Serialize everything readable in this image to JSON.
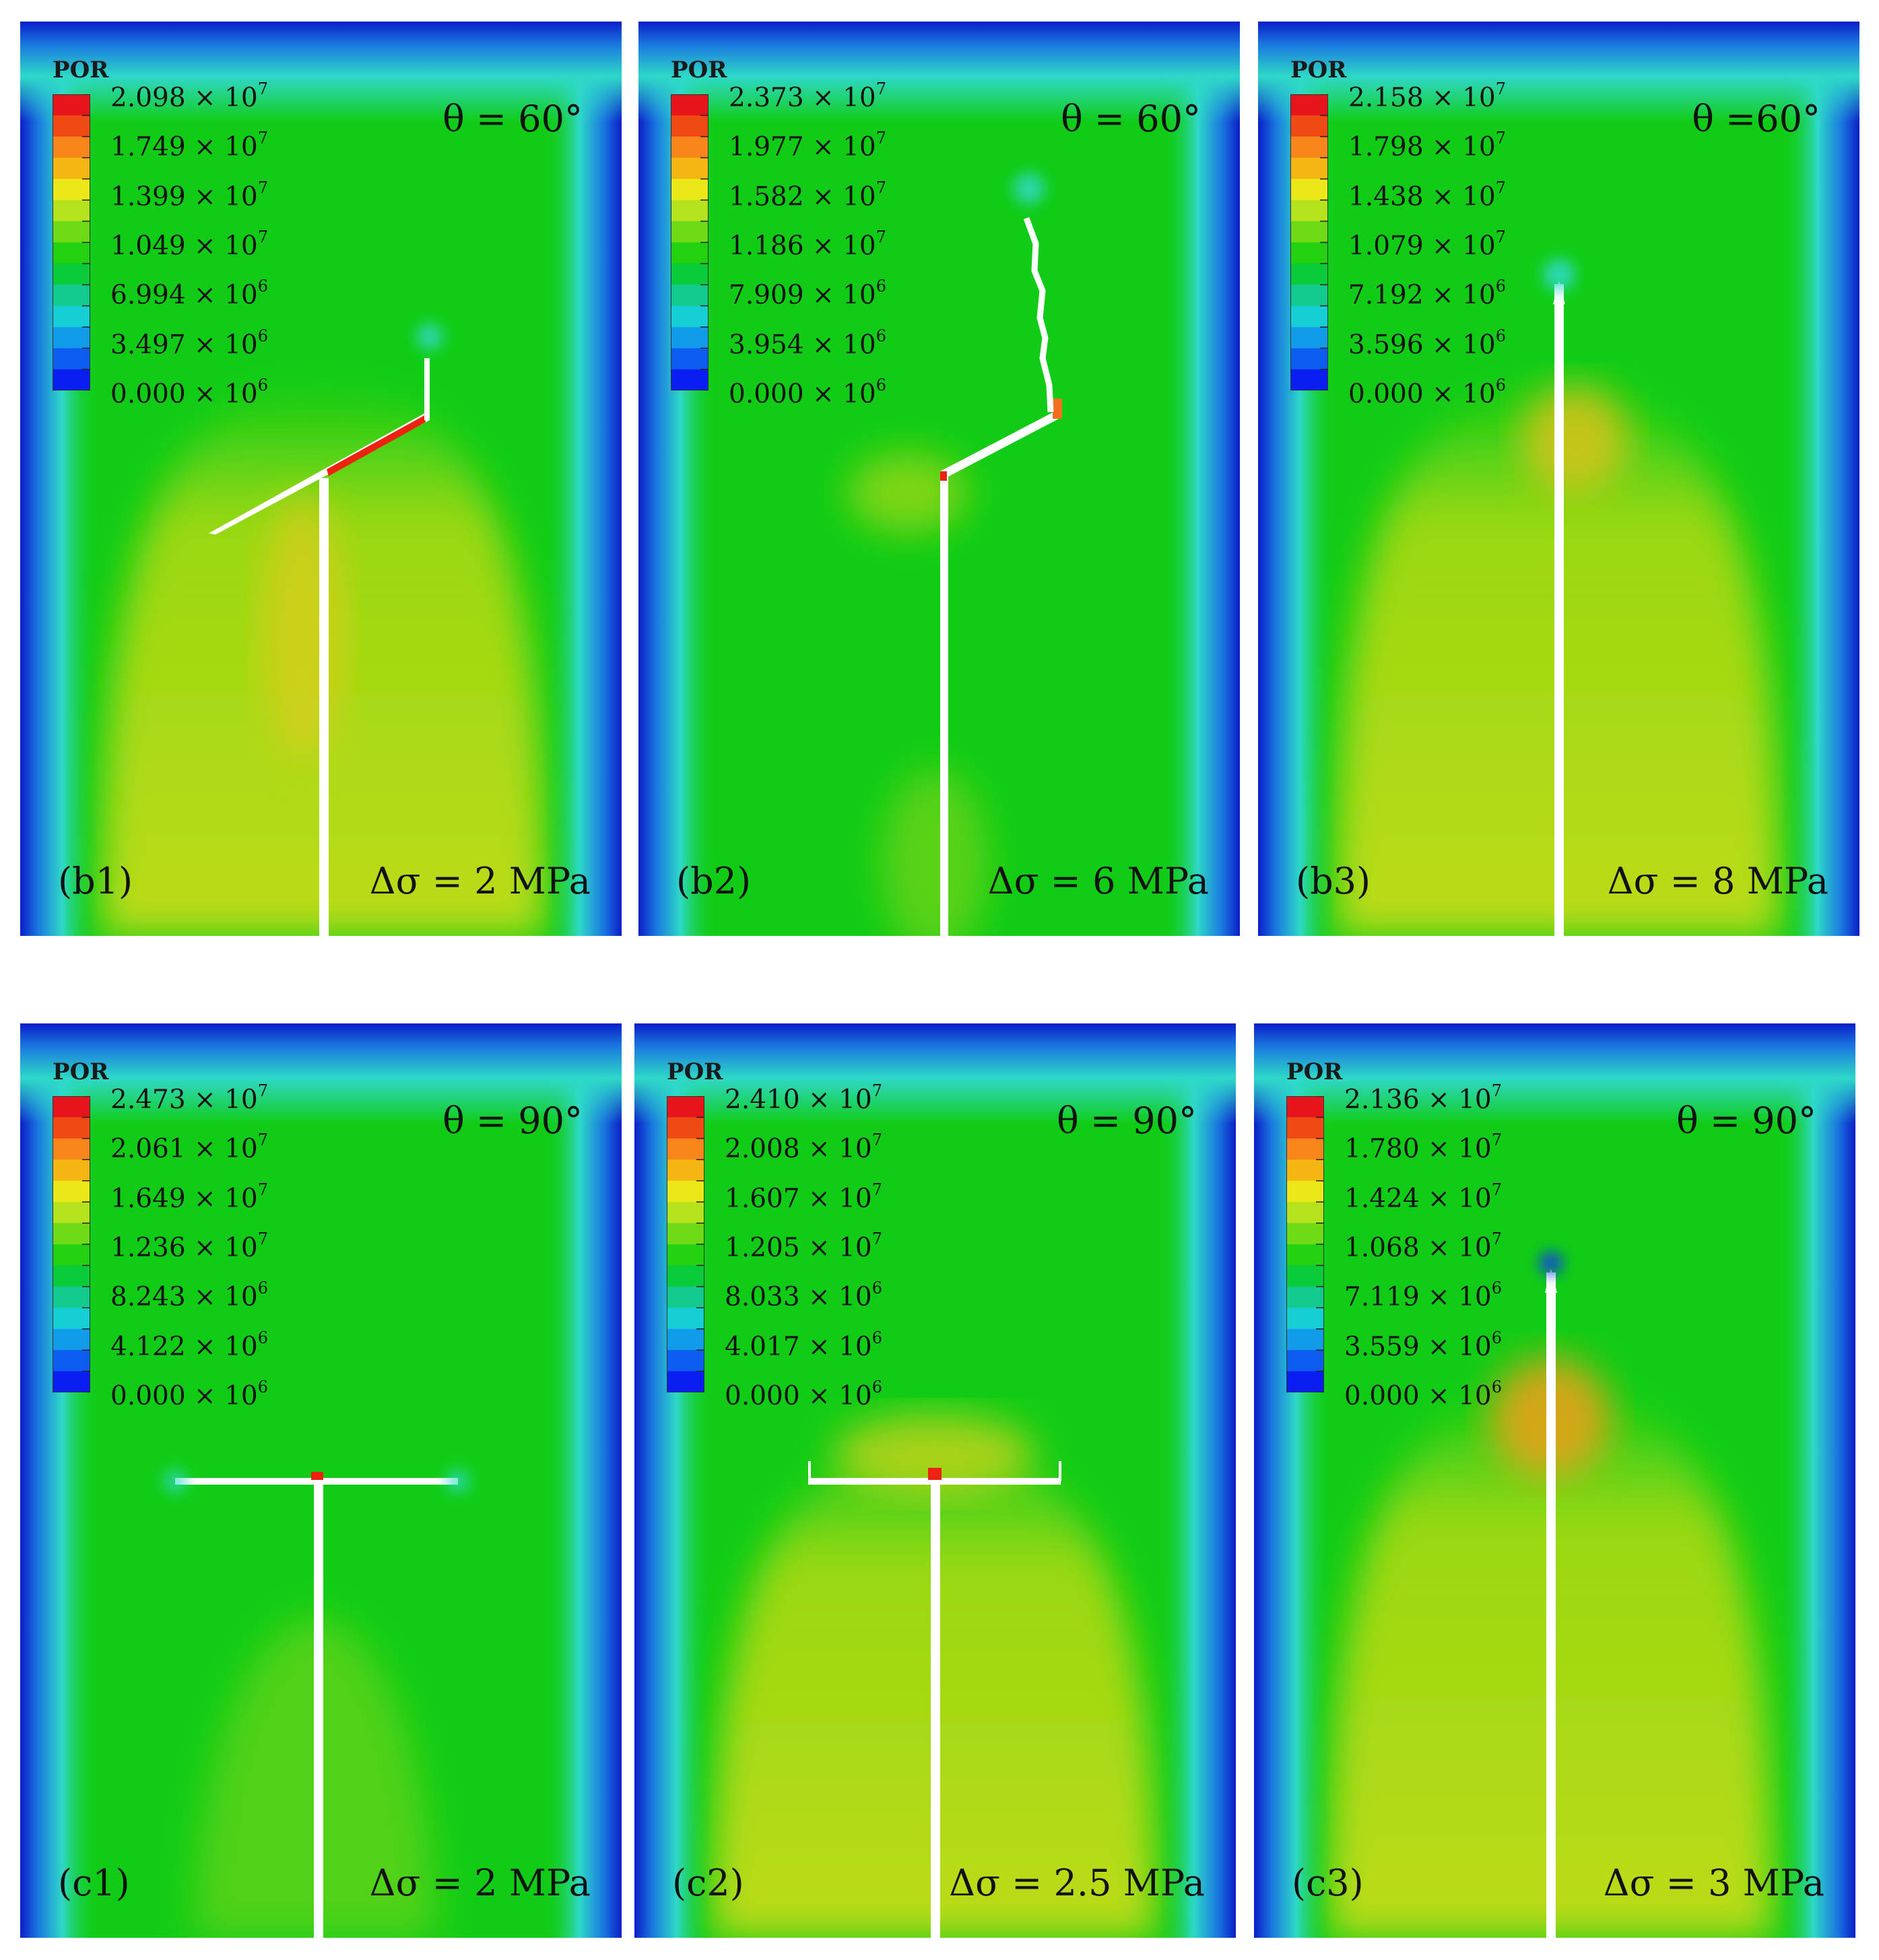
{
  "panels": [
    {
      "id": "b1",
      "label": "(b1)",
      "angle": "θ = 60°",
      "stress": "Δσ = 2 MPa",
      "legend_title": "POR",
      "ticks": [
        "2.098 × 10",
        "1.749 × 10",
        "1.399 × 10",
        "1.049 × 10",
        "6.994 × 10",
        "3.497 × 10",
        "0.000 × 10"
      ],
      "exps": [
        "7",
        "7",
        "7",
        "7",
        "6",
        "6",
        "6"
      ],
      "por_max": 20980000,
      "fracture": "branch-60-left"
    },
    {
      "id": "b2",
      "label": "(b2)",
      "angle": "θ = 60°",
      "stress": "Δσ = 6 MPa",
      "legend_title": "POR",
      "ticks": [
        "2.373 × 10",
        "1.977 × 10",
        "1.582 × 10",
        "1.186 × 10",
        "7.909 × 10",
        "3.954 × 10",
        "0.000 × 10"
      ],
      "exps": [
        "7",
        "7",
        "7",
        "7",
        "6",
        "6",
        "6"
      ],
      "por_max": 23730000,
      "fracture": "branch-60-right"
    },
    {
      "id": "b3",
      "label": "(b3)",
      "angle": "θ =60°",
      "stress": "Δσ = 8 MPa",
      "legend_title": "POR",
      "ticks": [
        "2.158 × 10",
        "1.798 × 10",
        "1.438 × 10",
        "1.079 × 10",
        "7.192 × 10",
        "3.596 × 10",
        "0.000 × 10"
      ],
      "exps": [
        "7",
        "7",
        "7",
        "7",
        "6",
        "6",
        "6"
      ],
      "por_max": 21580000,
      "fracture": "straight-through"
    },
    {
      "id": "c1",
      "label": "(c1)",
      "angle": "θ = 90°",
      "stress": "Δσ = 2 MPa",
      "legend_title": "POR",
      "ticks": [
        "2.473 × 10",
        "2.061 × 10",
        "1.649 × 10",
        "1.236 × 10",
        "8.243 × 10",
        "4.122 × 10",
        "0.000 × 10"
      ],
      "exps": [
        "7",
        "7",
        "7",
        "7",
        "6",
        "6",
        "6"
      ],
      "por_max": 24730000,
      "fracture": "t-junction-wide"
    },
    {
      "id": "c2",
      "label": "(c2)",
      "angle": "θ = 90°",
      "stress": "Δσ = 2.5 MPa",
      "legend_title": "POR",
      "ticks": [
        "2.410 × 10",
        "2.008 × 10",
        "1.607 × 10",
        "1.205 × 10",
        "8.033 × 10",
        "4.017 × 10",
        "0.000 × 10"
      ],
      "exps": [
        "7",
        "7",
        "7",
        "7",
        "6",
        "6",
        "6"
      ],
      "por_max": 24100000,
      "fracture": "t-junction-narrow"
    },
    {
      "id": "c3",
      "label": "(c3)",
      "angle": "θ = 90°",
      "stress": "Δσ = 3 MPa",
      "legend_title": "POR",
      "ticks": [
        "2.136 × 10",
        "1.780 × 10",
        "1.424 × 10",
        "1.068 × 10",
        "7.119 × 10",
        "3.559 × 10",
        "0.000 × 10"
      ],
      "exps": [
        "7",
        "7",
        "7",
        "7",
        "6",
        "6",
        "6"
      ],
      "por_max": 21360000,
      "fracture": "straight-through"
    }
  ],
  "colors": {
    "bar": [
      "#e8141c",
      "#f04a14",
      "#f7851a",
      "#f5b512",
      "#ece818",
      "#b4e21c",
      "#6edb16",
      "#22d20e",
      "#0acb3a",
      "#12c98e",
      "#16cfd4",
      "#129be8",
      "#0c5cf0",
      "#0a1ef2"
    ],
    "field_green": "#11cc16",
    "field_cyan": "#2ed9c8",
    "field_edge": "#0a1ec8",
    "field_yellow": "#c6dc14",
    "fracture": "#ffffff",
    "hot": "#ee2211"
  }
}
